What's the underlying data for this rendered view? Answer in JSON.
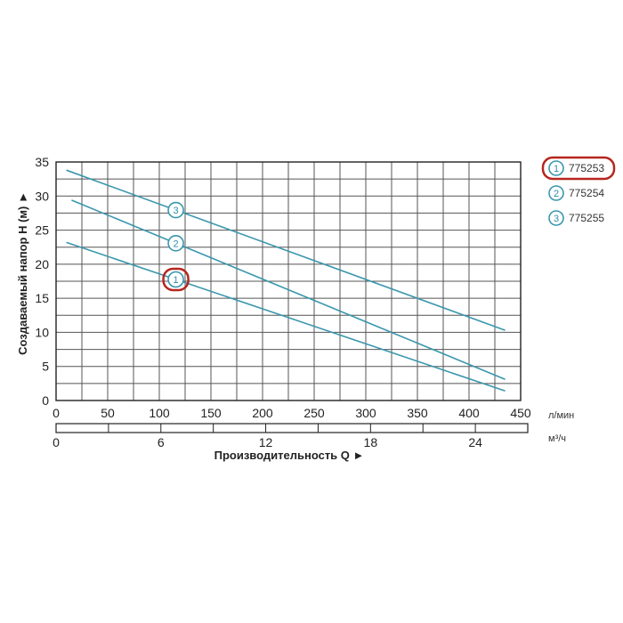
{
  "chart_data": {
    "type": "line",
    "ylabel": "Создаваемый напор H (м) ►",
    "xlabel": "Производительность Q ►",
    "x_unit": "л/мин",
    "x2_unit": "м³/ч",
    "xlim": [
      0,
      450
    ],
    "ylim": [
      0,
      35
    ],
    "x_ticks": [
      0,
      50,
      100,
      150,
      200,
      250,
      300,
      350,
      400,
      450
    ],
    "x2_ticks": [
      "0",
      "6",
      "12",
      "18",
      "24"
    ],
    "y_ticks": [
      0,
      5,
      10,
      15,
      20,
      25,
      30,
      35
    ],
    "series": [
      {
        "name": "775253",
        "marker": "1",
        "highlighted": true,
        "x": [
          10,
          435
        ],
        "y": [
          23.2,
          1.4
        ]
      },
      {
        "name": "775254",
        "marker": "2",
        "highlighted": false,
        "x": [
          15,
          435
        ],
        "y": [
          29.4,
          3.1
        ]
      },
      {
        "name": "775255",
        "marker": "3",
        "highlighted": false,
        "x": [
          10,
          435
        ],
        "y": [
          33.8,
          10.3
        ]
      }
    ],
    "colors": {
      "line": "#3a97ad",
      "highlight": "#b5261e",
      "grid": "#555555"
    }
  }
}
